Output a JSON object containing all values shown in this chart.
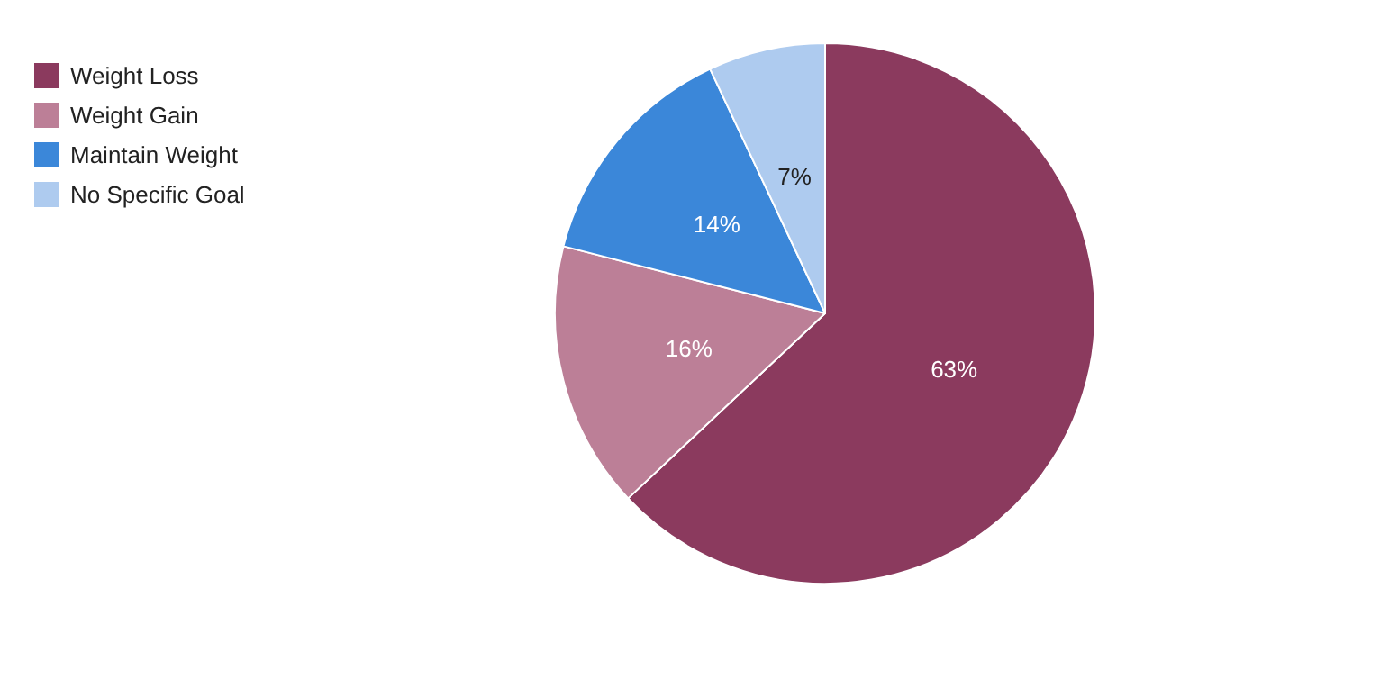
{
  "chart_data": {
    "type": "pie",
    "categories": [
      "Weight Loss",
      "Weight Gain",
      "Maintain Weight",
      "No Specific Goal"
    ],
    "values": [
      63,
      16,
      14,
      7
    ],
    "colors": [
      "#8b3a5e",
      "#bc7f97",
      "#3b87d9",
      "#aecbef"
    ],
    "value_labels": [
      "63%",
      "16%",
      "14%",
      "7%"
    ],
    "legend": "top left"
  }
}
